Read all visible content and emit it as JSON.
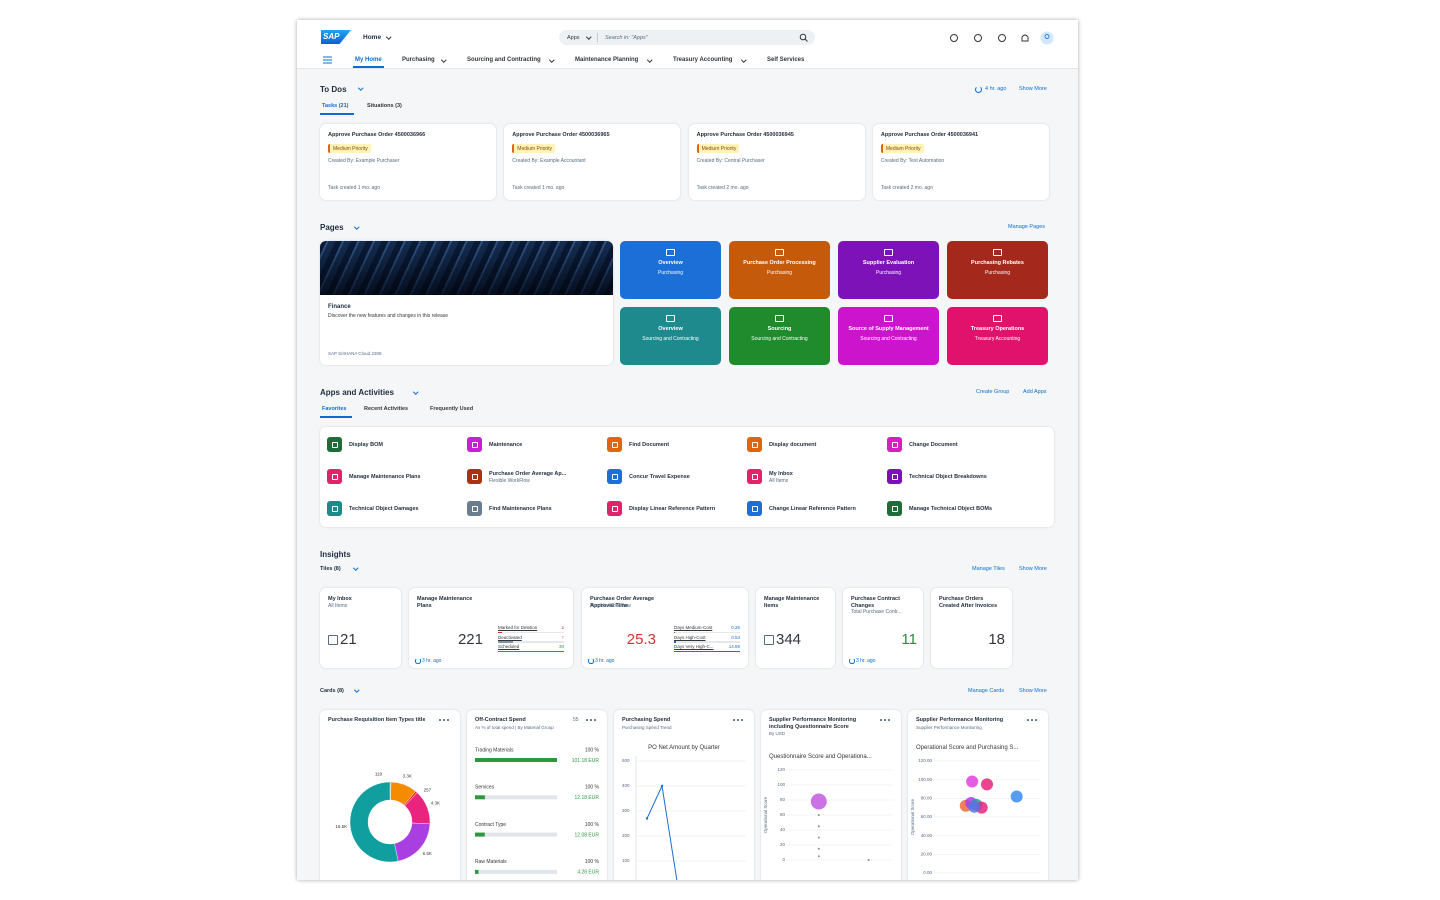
{
  "header": {
    "logo": "SAP",
    "home": "Home",
    "search_scope": "Apps",
    "search_placeholder": "Search in: \"Apps\""
  },
  "nav": [
    "My Home",
    "Purchasing",
    "Sourcing and Contracting",
    "Maintenance Planning",
    "Treasury Accounting",
    "Self Services"
  ],
  "todos": {
    "title": "To Dos",
    "refreshed": "4 hr. ago",
    "show_more": "Show More",
    "tabs": [
      "Tasks (21)",
      "Situations (3)"
    ],
    "cards": [
      {
        "title": "Approve Purchase Order 4500036966",
        "priority": "Medium Priority",
        "created_by": "Created By: Example Purchaser",
        "age": "Task created 1 mo. ago"
      },
      {
        "title": "Approve Purchase Order 4500036965",
        "priority": "Medium Priority",
        "created_by": "Created By: Example Accountant",
        "age": "Task created 1 mo. ago"
      },
      {
        "title": "Approve Purchase Order 4500036945",
        "priority": "Medium Priority",
        "created_by": "Created By: Central Purchaser",
        "age": "Task created 2 mo. ago"
      },
      {
        "title": "Approve Purchase Order 4500036941",
        "priority": "Medium Priority",
        "created_by": "Created By: Test Automation",
        "age": "Task created 2 mo. ago"
      }
    ]
  },
  "pages": {
    "title": "Pages",
    "manage": "Manage Pages",
    "hero": {
      "title": "Finance",
      "description": "Discover the new features and changes in this release",
      "release": "SAP S/4HANA Cloud 2308"
    },
    "tiles": [
      {
        "title": "Overview",
        "subtitle": "Purchasing",
        "color": "#1b6fd6"
      },
      {
        "title": "Purchase Order Processing",
        "subtitle": "Purchasing",
        "color": "#c55a0b"
      },
      {
        "title": "Supplier Evaluation",
        "subtitle": "Purchasing",
        "color": "#7d12b8"
      },
      {
        "title": "Purchasing Rebates",
        "subtitle": "Purchasing",
        "color": "#a5281c"
      },
      {
        "title": "Overview",
        "subtitle": "Sourcing and Contracting",
        "color": "#1f8a8e"
      },
      {
        "title": "Sourcing",
        "subtitle": "Sourcing and Contracting",
        "color": "#1f8b2c"
      },
      {
        "title": "Source of Supply Management",
        "subtitle": "Sourcing and Contracting",
        "color": "#cc14cc"
      },
      {
        "title": "Treasury Operations",
        "subtitle": "Treasury Accounting",
        "color": "#e0126c"
      }
    ]
  },
  "apps": {
    "title": "Apps and Activities",
    "actions": [
      "Create Group",
      "Add Apps"
    ],
    "tabs": [
      "Favorites",
      "Recent Activities",
      "Frequently Used"
    ],
    "items": [
      {
        "name": "Display BOM",
        "color": "#1f6b3a"
      },
      {
        "name": "Maintenance",
        "color": "#c61fd6"
      },
      {
        "name": "Find Document",
        "color": "#e0650f"
      },
      {
        "name": "Display document",
        "color": "#e0650f"
      },
      {
        "name": "Change Document",
        "color": "#d61fc2"
      },
      {
        "name": "Manage Maintenance Plans",
        "color": "#e0246a"
      },
      {
        "name": "Purchase Order Average Ap...",
        "subtitle": "Flexible WorkFlow",
        "color": "#a93310"
      },
      {
        "name": "Concur Travel Expense",
        "color": "#1b6fd6"
      },
      {
        "name": "My Inbox",
        "subtitle": "All Items",
        "color": "#e0246a"
      },
      {
        "name": "Technical Object Breakdowns",
        "color": "#7d10b5"
      },
      {
        "name": "Technical Object Damages",
        "color": "#1a8a8a"
      },
      {
        "name": "Find Maintenance Plans",
        "color": "#6a7d90"
      },
      {
        "name": "Display Linear Reference Pattern",
        "color": "#e0246a"
      },
      {
        "name": "Change Linear Reference Pattern",
        "color": "#1b6fd6"
      },
      {
        "name": "Manage Technical Object BOMs",
        "color": "#1f6b3a"
      }
    ]
  },
  "insights": {
    "title": "Insights",
    "tiles_label": "Tiles (8)",
    "actions": [
      "Manage Tiles",
      "Show More"
    ],
    "tiles": [
      {
        "title": "My Inbox",
        "subtitle": "All Items",
        "value": 21
      },
      {
        "title": "Manage Maintenance Plans",
        "value": 221,
        "footer": "3 hr. ago",
        "rows": [
          {
            "label": "Marked for Deletion",
            "value": 2,
            "color": "#d0332d"
          },
          {
            "label": "Deactivated",
            "value": 7,
            "color": "#8396a8"
          },
          {
            "label": "Scheduled",
            "value": 30,
            "color": "#2b9a3f"
          }
        ]
      },
      {
        "title": "Purchase Order Average Approval Time",
        "subtitle": "Flexible WorkFlow",
        "value": 25.3,
        "value_color": "#d0332d",
        "footer": "3 hr. ago",
        "rows": [
          {
            "label": "Days Medium-Cost",
            "value": 0.26,
            "color": "#1b6fd6"
          },
          {
            "label": "Days High-Cost",
            "value": 0.53,
            "color": "#1b6fd6"
          },
          {
            "label": "Days Very High-C...",
            "value": 14.89,
            "color": "#1b6fd6"
          }
        ]
      },
      {
        "title": "Manage Maintenance Items",
        "value": 344
      },
      {
        "title": "Purchase Contract Changes",
        "subtitle": "Total Purchase Contr...",
        "value": 11,
        "value_color": "#2b8a3e",
        "footer": "3 hr. ago"
      },
      {
        "title": "Purchase Orders Created After Invoices",
        "value": 18
      }
    ],
    "cards_label": "Cards (8)",
    "card_actions": [
      "Manage Cards",
      "Show More"
    ],
    "cards": [
      {
        "title": "Purchase Requisition Item Types title",
        "chart": {
          "type": "donut",
          "values": [
            119,
            3300,
            257,
            4300,
            6500,
            16500
          ],
          "value_labels": [
            "119",
            "3.3K",
            "257",
            "4.3K",
            "6.5K",
            "16.5K"
          ],
          "colors": [
            "#6a7d90",
            "#f58b00",
            "#e2311d",
            "#e8247f",
            "#a93ee1",
            "#109e9e"
          ]
        }
      },
      {
        "title": "Off-Contract Spend",
        "badge": "55",
        "subtitle": "As % of total spend | By Material Group",
        "chart": {
          "type": "progress",
          "categories": [
            "Trading Materials",
            "Services",
            "Contract Type",
            "Raw Materials"
          ],
          "shares": [
            "100 %",
            "100 %",
            "100 %",
            "100 %"
          ],
          "values": [
            101.18,
            12.18,
            12.08,
            4.28
          ],
          "value_labels": [
            "101.18 EUR",
            "12.18 EUR",
            "12.08 EUR",
            "4.28 EUR"
          ],
          "color": "#2b9a3f"
        }
      },
      {
        "title": "Purchasing Spend",
        "subtitle": "Purchasing Spend Trend",
        "chart": {
          "type": "line",
          "title": "PO Net Amount by Quarter",
          "values": [
            270,
            400,
            20
          ],
          "ylim": [
            20,
            520
          ],
          "yticks": [
            100,
            200,
            300,
            400,
            500
          ],
          "color": "#1b6fd6"
        }
      },
      {
        "title": "Supplier Performance Monitoring including Questionnaire Score",
        "subtitle": "By USD",
        "chart": {
          "type": "scatter",
          "title": "Questionnaire Score and Operationa...",
          "y_label": "Operational Score",
          "xlim": [
            0,
            100
          ],
          "ylim": [
            0,
            120
          ],
          "yticks": [
            0,
            20,
            40,
            60,
            80,
            100,
            120
          ],
          "x": [
            30,
            30,
            30,
            30,
            30,
            30,
            77
          ],
          "values": [
            78,
            60,
            45,
            30,
            15,
            5,
            0
          ],
          "sizes": [
            8,
            1,
            1,
            1,
            1,
            1,
            1
          ],
          "colors": [
            "#c25ae0",
            "#6a7d90",
            "#6a7d90",
            "#6a7d90",
            "#6a7d90",
            "#6a7d90",
            "#6a7d90"
          ]
        }
      },
      {
        "title": "Supplier Performance Monitoring",
        "subtitle": "Supplier Performance Monitoring",
        "chart": {
          "type": "scatter",
          "title": "Operational Score and Purchasing S...",
          "y_label": "Operational Score",
          "xlim": [
            0,
            100
          ],
          "ylim": [
            0,
            120
          ],
          "yticks": [
            {
              "value": 0,
              "label": "0.00"
            },
            {
              "value": 20,
              "label": "20.00"
            },
            {
              "value": 40,
              "label": "40.00"
            },
            {
              "value": 60,
              "label": "60.00"
            },
            {
              "value": 80,
              "label": "80.00"
            },
            {
              "value": 100,
              "label": "100.00"
            },
            {
              "value": 120,
              "label": "120.00"
            }
          ],
          "x": [
            36,
            50,
            78,
            30,
            35,
            40,
            45,
            38
          ],
          "values": [
            98,
            95,
            82,
            72,
            75,
            73,
            70,
            71
          ],
          "sizes": [
            6,
            6,
            6,
            6,
            6,
            6,
            6,
            6
          ],
          "colors": [
            "#e03fe0",
            "#e8247f",
            "#3a8bef",
            "#f06a3a",
            "#a93ee1",
            "#2b9a8e",
            "#e8247f",
            "#5b73e8"
          ]
        }
      }
    ]
  }
}
